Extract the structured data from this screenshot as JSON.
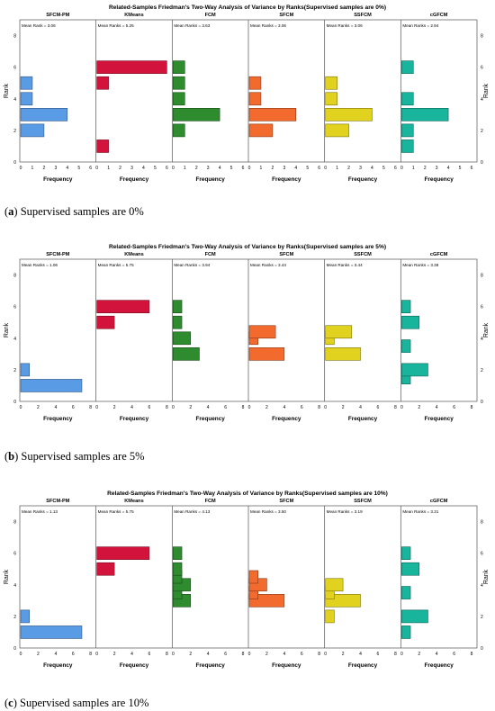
{
  "captions": [
    {
      "letter": "a",
      "text": " Supervised samples are 0%"
    },
    {
      "letter": "b",
      "text": " Supervised samples are 5%"
    },
    {
      "letter": "c",
      "text": " Supervised samples are 10%"
    }
  ],
  "chart_data": [
    {
      "type": "bar",
      "orientation": "horizontal",
      "title": "Related-Samples Friedman's Two-Way Analysis of Variance by Ranks(Supervised samples are 0%)",
      "ylabel": "Rank",
      "xlabel": "Frequency",
      "ylim": [
        0,
        9
      ],
      "y_ticks": [
        "0",
        "2",
        "4",
        "6",
        "8"
      ],
      "groups": [
        {
          "name": "SFCM-PM",
          "mean": "Mean Rank = 3.06",
          "color": "#5a9be6",
          "xlim": [
            0,
            6
          ],
          "x_ticks": [
            "0",
            "1",
            "2",
            "3",
            "4",
            "5",
            "6"
          ],
          "bars": [
            {
              "rank": 1,
              "freq": 0
            },
            {
              "rank": 2,
              "freq": 2
            },
            {
              "rank": 3,
              "freq": 4
            },
            {
              "rank": 4,
              "freq": 1
            },
            {
              "rank": 5,
              "freq": 1
            }
          ]
        },
        {
          "name": "KMeans",
          "mean": "Mean Ranks = 5.25",
          "color": "#d2143c",
          "xlim": [
            0,
            6
          ],
          "x_ticks": [
            "0",
            "1",
            "2",
            "3",
            "4",
            "5",
            "6"
          ],
          "bars": [
            {
              "rank": 1,
              "freq": 1
            },
            {
              "rank": 5,
              "freq": 1
            },
            {
              "rank": 6,
              "freq": 6
            }
          ]
        },
        {
          "name": "FCM",
          "mean": "Mean Ranks = 3.63",
          "color": "#2e8b2e",
          "xlim": [
            0,
            6
          ],
          "x_ticks": [
            "0",
            "1",
            "2",
            "3",
            "4",
            "5",
            "6"
          ],
          "bars": [
            {
              "rank": 2,
              "freq": 1
            },
            {
              "rank": 3,
              "freq": 4
            },
            {
              "rank": 4,
              "freq": 1
            },
            {
              "rank": 5,
              "freq": 1
            },
            {
              "rank": 6,
              "freq": 1
            }
          ]
        },
        {
          "name": "SFCM",
          "mean": "Mean Ranks = 3.06",
          "color": "#f26a2e",
          "xlim": [
            0,
            6
          ],
          "x_ticks": [
            "0",
            "1",
            "2",
            "3",
            "4",
            "5",
            "6"
          ],
          "bars": [
            {
              "rank": 2,
              "freq": 2
            },
            {
              "rank": 3,
              "freq": 4
            },
            {
              "rank": 4,
              "freq": 1
            },
            {
              "rank": 5,
              "freq": 1
            }
          ]
        },
        {
          "name": "SSFCM",
          "mean": "Mean Ranks = 3.06",
          "color": "#e0d21e",
          "xlim": [
            0,
            6
          ],
          "x_ticks": [
            "0",
            "1",
            "2",
            "3",
            "4",
            "5",
            "6"
          ],
          "bars": [
            {
              "rank": 2,
              "freq": 2
            },
            {
              "rank": 3,
              "freq": 4
            },
            {
              "rank": 4,
              "freq": 1
            },
            {
              "rank": 5,
              "freq": 1
            }
          ]
        },
        {
          "name": "cGFCM",
          "mean": "Mean Ranks = 2.94",
          "color": "#18b49c",
          "xlim": [
            0,
            6
          ],
          "x_ticks": [
            "0",
            "1",
            "2",
            "3",
            "4",
            "5",
            "6"
          ],
          "bars": [
            {
              "rank": 1,
              "freq": 1
            },
            {
              "rank": 2,
              "freq": 1
            },
            {
              "rank": 3,
              "freq": 4
            },
            {
              "rank": 4,
              "freq": 1
            },
            {
              "rank": 6,
              "freq": 1
            }
          ]
        }
      ]
    },
    {
      "type": "bar",
      "orientation": "horizontal",
      "title": "Related-Samples Friedman's Two-Way Analysis of Variance by Ranks(Supervised samples are 5%)",
      "ylabel": "Rank",
      "xlabel": "Frequency",
      "ylim": [
        0,
        9
      ],
      "y_ticks": [
        "0",
        "2",
        "4",
        "6",
        "8"
      ],
      "groups": [
        {
          "name": "SFCM-PM",
          "mean": "Mean Ranks = 1.06",
          "color": "#5a9be6",
          "xlim": [
            0,
            8
          ],
          "x_ticks": [
            "0",
            "2",
            "4",
            "6",
            "8"
          ],
          "bars": [
            {
              "rank": 1,
              "freq": 7
            },
            {
              "rank": 2,
              "freq": 1
            }
          ]
        },
        {
          "name": "KMeans",
          "mean": "Mean Ranks = 5.75",
          "color": "#d2143c",
          "xlim": [
            0,
            8
          ],
          "x_ticks": [
            "0",
            "2",
            "4",
            "6",
            "8"
          ],
          "bars": [
            {
              "rank": 5,
              "freq": 2
            },
            {
              "rank": 6,
              "freq": 6
            }
          ]
        },
        {
          "name": "FCM",
          "mean": "Mean Ranks = 3.94",
          "color": "#2e8b2e",
          "xlim": [
            0,
            8
          ],
          "x_ticks": [
            "0",
            "2",
            "4",
            "6",
            "8"
          ],
          "bars": [
            {
              "rank": 3,
              "freq": 3
            },
            {
              "rank": 4,
              "freq": 2
            },
            {
              "rank": 5,
              "freq": 1
            },
            {
              "rank": 6,
              "freq": 1
            }
          ]
        },
        {
          "name": "SFCM",
          "mean": "Mean Ranks = 3.44",
          "color": "#f26a2e",
          "xlim": [
            0,
            8
          ],
          "x_ticks": [
            "0",
            "2",
            "4",
            "6",
            "8"
          ],
          "bars": [
            {
              "rank": 3,
              "freq": 4
            },
            {
              "rank": 4,
              "freq": 1
            },
            {
              "rank": 4.4,
              "freq": 3
            }
          ]
        },
        {
          "name": "SSFCM",
          "mean": "Mean Ranks = 3.44",
          "color": "#e0d21e",
          "xlim": [
            0,
            8
          ],
          "x_ticks": [
            "0",
            "2",
            "4",
            "6",
            "8"
          ],
          "bars": [
            {
              "rank": 3,
              "freq": 4
            },
            {
              "rank": 4,
              "freq": 1
            },
            {
              "rank": 4.4,
              "freq": 3
            }
          ]
        },
        {
          "name": "cGFCM",
          "mean": "Mean Ranks = 3.38",
          "color": "#18b49c",
          "xlim": [
            0,
            8
          ],
          "x_ticks": [
            "0",
            "2",
            "4",
            "6",
            "8"
          ],
          "bars": [
            {
              "rank": 1.5,
              "freq": 1
            },
            {
              "rank": 2,
              "freq": 3
            },
            {
              "rank": 3.5,
              "freq": 1
            },
            {
              "rank": 5,
              "freq": 2
            },
            {
              "rank": 6,
              "freq": 1
            }
          ]
        }
      ]
    },
    {
      "type": "bar",
      "orientation": "horizontal",
      "title": "Related-Samples Friedman's Two-Way Analysis of Variance by Ranks(Supervised samples are 10%)",
      "ylabel": "Rank",
      "xlabel": "Frequency",
      "ylim": [
        0,
        9
      ],
      "y_ticks": [
        "0",
        "2",
        "4",
        "6",
        "8"
      ],
      "groups": [
        {
          "name": "SFCM-PM",
          "mean": "Mean Ranks = 1.13",
          "color": "#5a9be6",
          "xlim": [
            0,
            8
          ],
          "x_ticks": [
            "0",
            "2",
            "4",
            "6",
            "8"
          ],
          "bars": [
            {
              "rank": 1,
              "freq": 7
            },
            {
              "rank": 2,
              "freq": 1
            }
          ]
        },
        {
          "name": "KMeans",
          "mean": "Mean Ranks = 5.75",
          "color": "#d2143c",
          "xlim": [
            0,
            8
          ],
          "x_ticks": [
            "0",
            "2",
            "4",
            "6",
            "8"
          ],
          "bars": [
            {
              "rank": 5,
              "freq": 2
            },
            {
              "rank": 6,
              "freq": 6
            }
          ]
        },
        {
          "name": "FCM",
          "mean": "Mean Ranks = 4.13",
          "color": "#2e8b2e",
          "xlim": [
            0,
            8
          ],
          "x_ticks": [
            "0",
            "2",
            "4",
            "6",
            "8"
          ],
          "bars": [
            {
              "rank": 3,
              "freq": 2
            },
            {
              "rank": 3.5,
              "freq": 1
            },
            {
              "rank": 4,
              "freq": 2
            },
            {
              "rank": 4.5,
              "freq": 1
            },
            {
              "rank": 5,
              "freq": 1
            },
            {
              "rank": 6,
              "freq": 1
            }
          ]
        },
        {
          "name": "SFCM",
          "mean": "Mean Ranks = 3.50",
          "color": "#f26a2e",
          "xlim": [
            0,
            8
          ],
          "x_ticks": [
            "0",
            "2",
            "4",
            "6",
            "8"
          ],
          "bars": [
            {
              "rank": 3,
              "freq": 4
            },
            {
              "rank": 3.5,
              "freq": 1
            },
            {
              "rank": 4,
              "freq": 2
            },
            {
              "rank": 4.5,
              "freq": 1
            }
          ]
        },
        {
          "name": "SSFCM",
          "mean": "Mean Ranks = 3.19",
          "color": "#e0d21e",
          "xlim": [
            0,
            8
          ],
          "x_ticks": [
            "0",
            "2",
            "4",
            "6",
            "8"
          ],
          "bars": [
            {
              "rank": 2,
              "freq": 1
            },
            {
              "rank": 3,
              "freq": 4
            },
            {
              "rank": 3.5,
              "freq": 1
            },
            {
              "rank": 4,
              "freq": 2
            }
          ]
        },
        {
          "name": "cGFCM",
          "mean": "Mean Ranks = 3.31",
          "color": "#18b49c",
          "xlim": [
            0,
            8
          ],
          "x_ticks": [
            "0",
            "2",
            "4",
            "6",
            "8"
          ],
          "bars": [
            {
              "rank": 1,
              "freq": 1
            },
            {
              "rank": 2,
              "freq": 3
            },
            {
              "rank": 3.5,
              "freq": 1
            },
            {
              "rank": 5,
              "freq": 2
            },
            {
              "rank": 6,
              "freq": 1
            }
          ]
        }
      ]
    }
  ]
}
